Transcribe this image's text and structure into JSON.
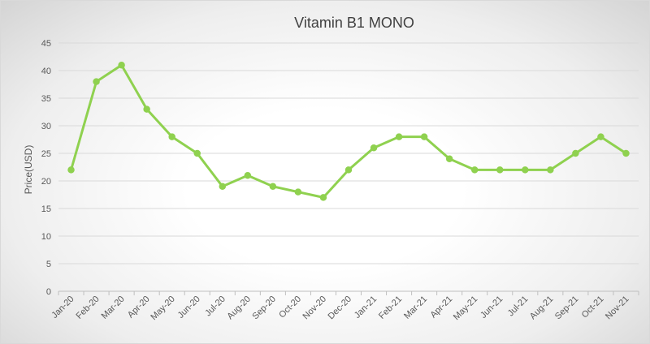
{
  "chart_data": {
    "type": "line",
    "title": "Vitamin B1 MONO",
    "xlabel": "",
    "ylabel": "Price(USD)",
    "ylim": [
      0,
      45
    ],
    "yticks": [
      "0",
      "5",
      "10",
      "15",
      "20",
      "25",
      "30",
      "35",
      "40",
      "45"
    ],
    "grid": true,
    "legend": "none",
    "categories": [
      "Jan-20",
      "Feb-20",
      "Mar-20",
      "Apr-20",
      "May-20",
      "Jun-20",
      "Jul-20",
      "Aug-20",
      "Sep-20",
      "Oct-20",
      "Nov-20",
      "Dec-20",
      "Jan-21",
      "Feb-21",
      "Mar-21",
      "Apr-21",
      "May-21",
      "Jun-21",
      "Jul-21",
      "Aug-21",
      "Sep-21",
      "Oct-21",
      "Nov-21"
    ],
    "series": [
      {
        "name": "Vitamin B1 MONO",
        "color": "#8fd14f",
        "values": [
          22,
          38,
          41,
          33,
          28,
          25,
          19,
          21,
          19,
          18,
          17,
          22,
          26,
          28,
          28,
          24,
          22,
          22,
          22,
          22,
          25,
          28,
          25
        ]
      }
    ]
  }
}
